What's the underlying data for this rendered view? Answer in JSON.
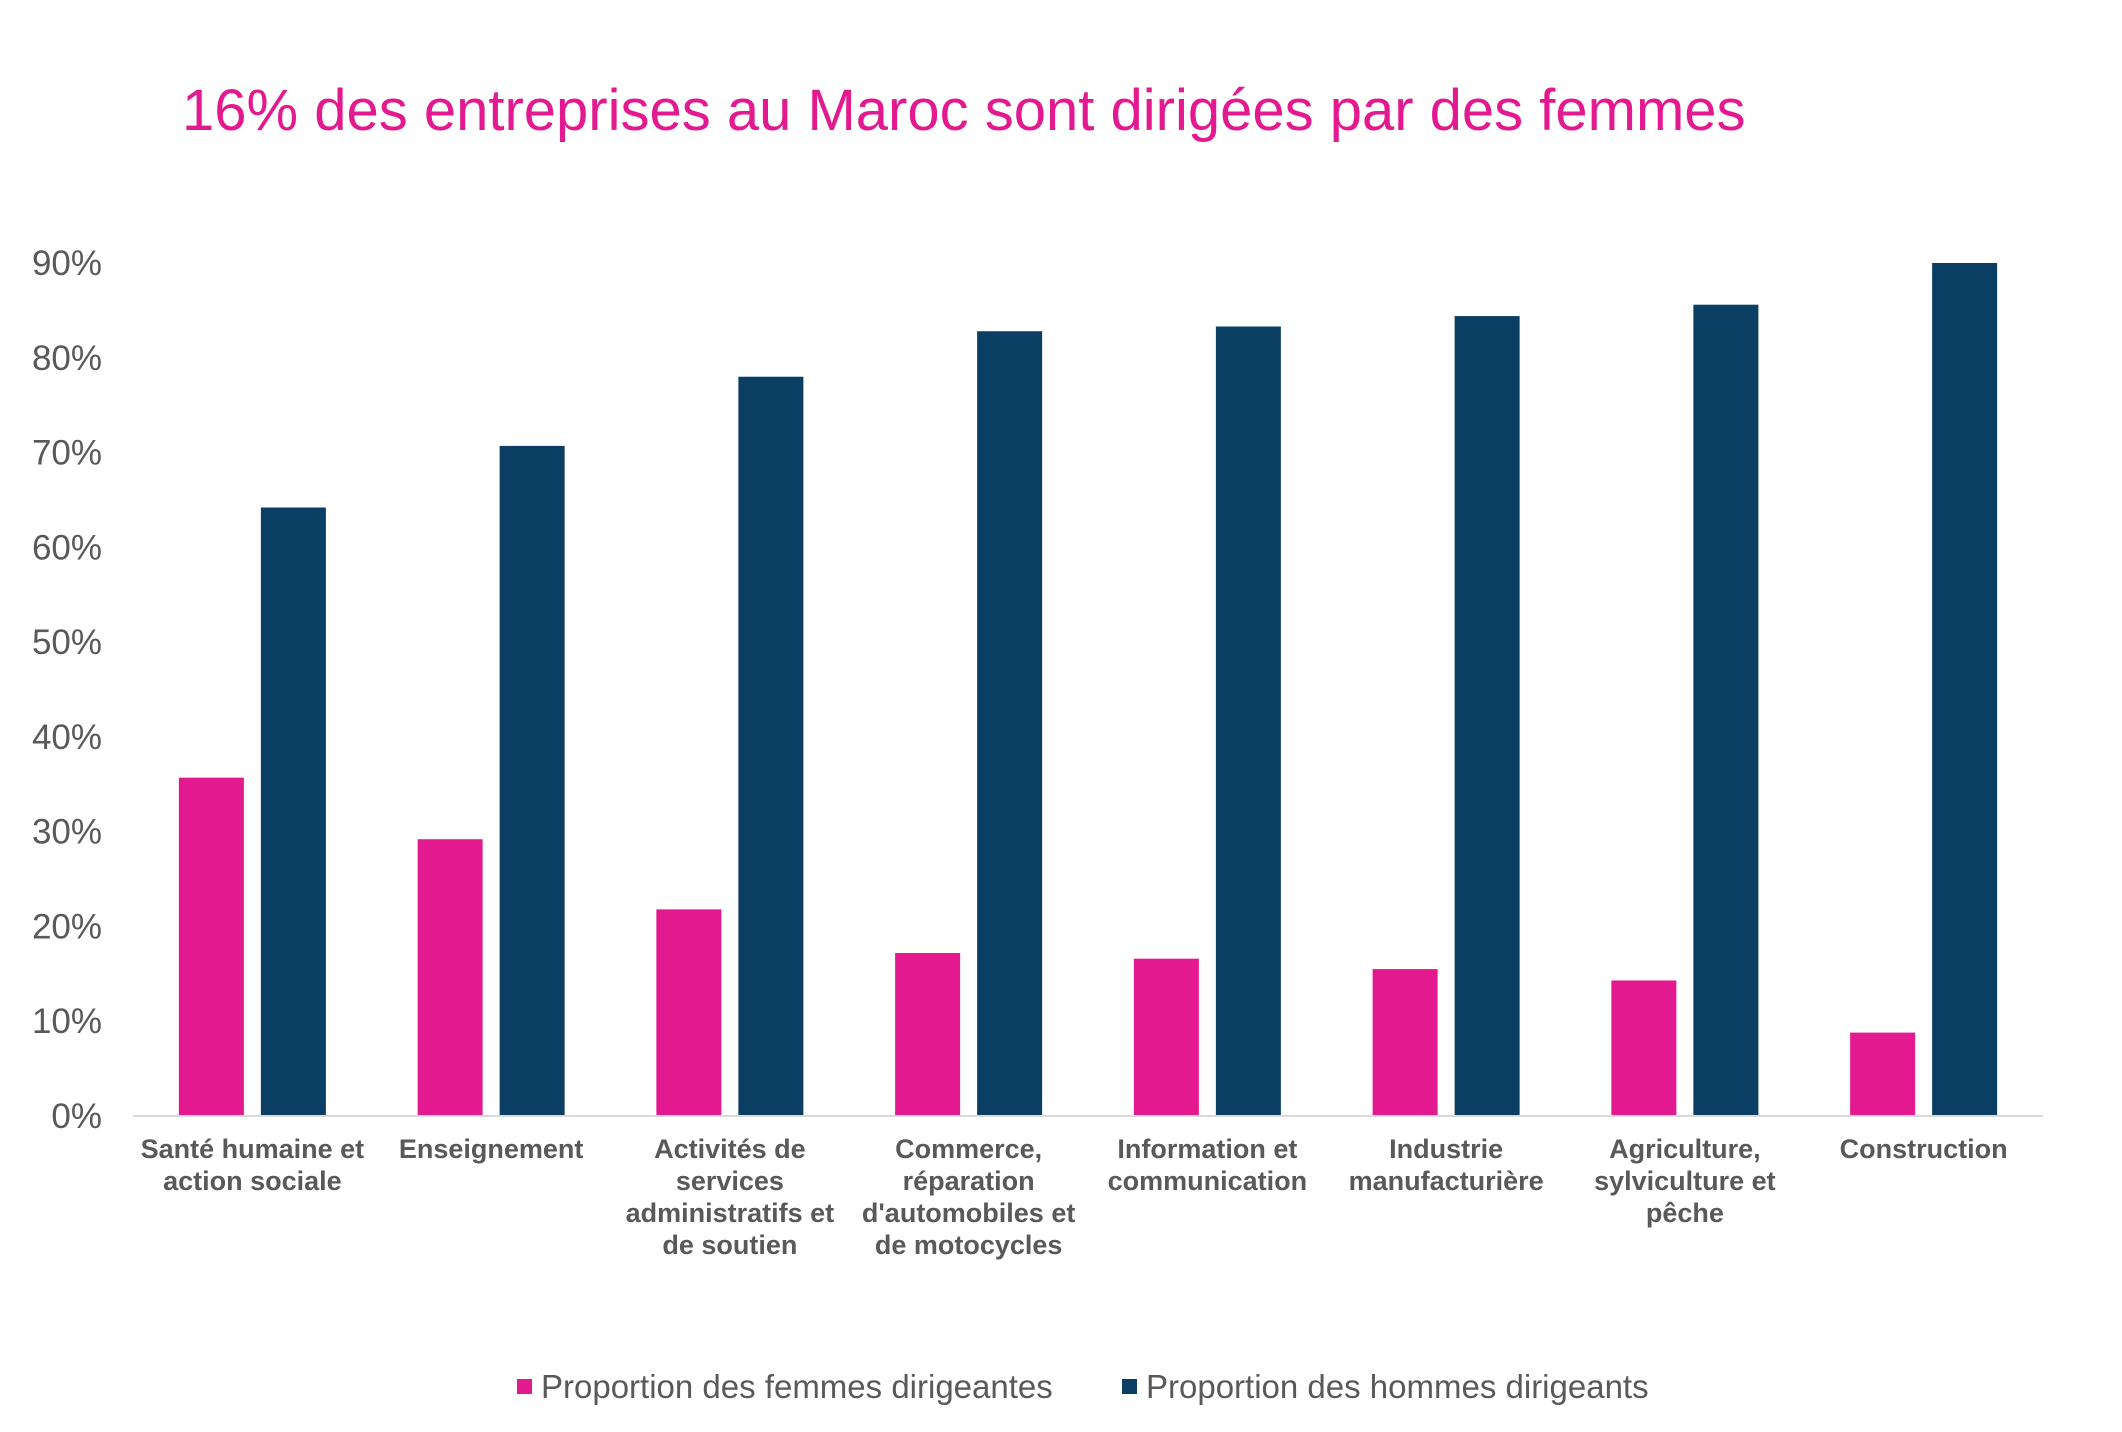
{
  "chart_data": {
    "type": "bar",
    "title": "16% des entreprises au Maroc sont dirigées par des femmes",
    "xlabel": "",
    "ylabel": "",
    "ylim": [
      0,
      90
    ],
    "yticks": [
      "0%",
      "10%",
      "20%",
      "30%",
      "40%",
      "50%",
      "60%",
      "70%",
      "80%",
      "90%"
    ],
    "grid": false,
    "legend_position": "bottom",
    "categories": [
      [
        "Santé humaine et",
        "action sociale"
      ],
      [
        "Enseignement"
      ],
      [
        "Activités de",
        "services",
        "administratifs et",
        "de soutien"
      ],
      [
        "Commerce,",
        "réparation",
        "d'automobiles et",
        "de motocycles"
      ],
      [
        "Information et",
        "communication"
      ],
      [
        "Industrie",
        "manufacturière"
      ],
      [
        "Agriculture,",
        "sylviculture et",
        "pêche"
      ],
      [
        "Construction"
      ]
    ],
    "series": [
      {
        "name": "Proportion des femmes dirigeantes",
        "color": "#E2198F",
        "values": [
          35.7,
          29.2,
          21.8,
          17.2,
          16.6,
          15.5,
          14.3,
          8.8
        ]
      },
      {
        "name": "Proportion des hommes dirigeants",
        "color": "#0A3E63",
        "values": [
          64.2,
          70.7,
          78.0,
          82.8,
          83.3,
          84.4,
          85.6,
          90.0
        ]
      }
    ]
  },
  "colors": {
    "title": "#E2198F",
    "axis_text": "#595959",
    "axis_line": "#D9D9D9"
  }
}
